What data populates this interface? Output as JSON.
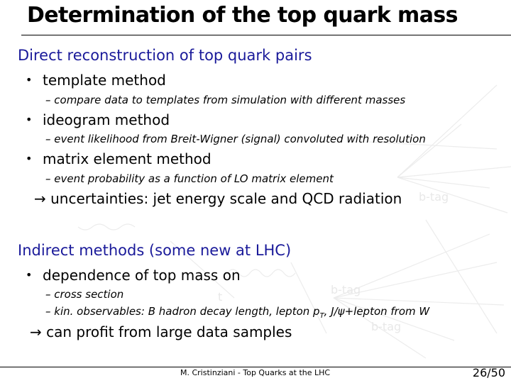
{
  "title": "Determination of the top quark mass",
  "section1": {
    "heading": "Direct reconstruction of top quark pairs",
    "bullet_char": "•",
    "items": [
      {
        "label": "template method",
        "detail": "– compare data to templates from simulation with different masses"
      },
      {
        "label": "ideogram method",
        "detail": "– event likelihood from Breit-Wigner (signal) convoluted with resolution"
      },
      {
        "label": "matrix element method",
        "detail": "– event probability as a function of LO matrix element"
      }
    ],
    "conclusion_arrow": "→",
    "conclusion": "uncertainties: jet energy scale and QCD radiation"
  },
  "section2": {
    "heading": "Indirect methods (some new at LHC)",
    "bullet_char": "•",
    "item_label": "dependence of top mass on",
    "details": [
      "– cross section",
      "– kin. observables: B hadron decay length, lepton p",
      "T",
      ", J/ψ+lepton from W"
    ],
    "conclusion_arrow": "→",
    "conclusion": "can profit from large data samples"
  },
  "background_labels": {
    "btag_1": "b-tag",
    "btag_2": "b-tag",
    "btag_3": "b-tag",
    "t": "t"
  },
  "footer": {
    "text": "M. Cristinziani - Top Quarks at the LHC",
    "page": "26/50"
  }
}
